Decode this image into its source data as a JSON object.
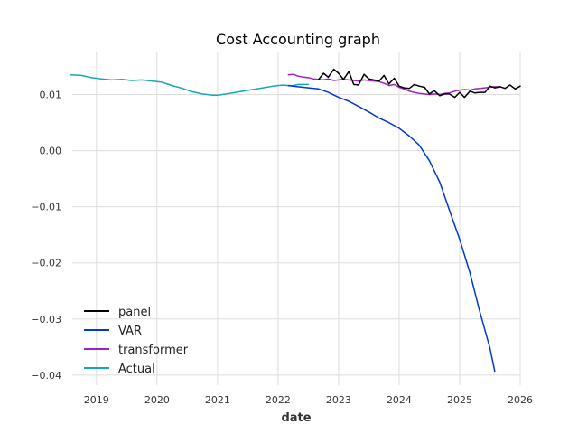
{
  "chart_data": {
    "type": "line",
    "title": "Cost Accounting graph",
    "xlabel": "date",
    "ylabel": "",
    "xlim": [
      2018.6,
      2026.0
    ],
    "ylim": [
      -0.0418,
      0.0175
    ],
    "x_ticks": [
      2019,
      2020,
      2021,
      2022,
      2023,
      2024,
      2025,
      2026
    ],
    "x_tick_labels": [
      "2019",
      "2020",
      "2021",
      "2022",
      "2023",
      "2024",
      "2025",
      "2026"
    ],
    "y_ticks": [
      0.01,
      0.0,
      -0.01,
      -0.02,
      -0.03,
      -0.04
    ],
    "y_tick_labels": [
      "0.01",
      "0.00",
      "−0.01",
      "−0.02",
      "−0.03",
      "−0.04"
    ],
    "grid": true,
    "legend_position": "bottom-left",
    "series": [
      {
        "name": "panel",
        "color": "#000000",
        "x": [
          2022.67,
          2022.75,
          2022.83,
          2022.92,
          2023.0,
          2023.08,
          2023.17,
          2023.25,
          2023.33,
          2023.42,
          2023.5,
          2023.58,
          2023.67,
          2023.75,
          2023.83,
          2023.92,
          2024.0,
          2024.08,
          2024.17,
          2024.25,
          2024.33,
          2024.42,
          2024.5,
          2024.58,
          2024.67,
          2024.75,
          2024.83,
          2024.92,
          2025.0,
          2025.08,
          2025.17,
          2025.25,
          2025.33,
          2025.42,
          2025.5,
          2025.58,
          2025.67,
          2025.75,
          2025.83,
          2025.92,
          2026.0
        ],
        "values": [
          0.0127,
          0.0138,
          0.0131,
          0.0145,
          0.0138,
          0.0127,
          0.0141,
          0.0118,
          0.0117,
          0.0136,
          0.0128,
          0.0126,
          0.0124,
          0.0134,
          0.0119,
          0.0129,
          0.0115,
          0.0112,
          0.0111,
          0.0118,
          0.0115,
          0.0113,
          0.0101,
          0.0107,
          0.0098,
          0.0101,
          0.0101,
          0.0095,
          0.0104,
          0.0095,
          0.0106,
          0.0103,
          0.0104,
          0.0104,
          0.0115,
          0.0112,
          0.0114,
          0.0111,
          0.0117,
          0.011,
          0.0115
        ]
      },
      {
        "name": "VAR",
        "color": "#0038d6",
        "x": [
          2022.17,
          2022.33,
          2022.5,
          2022.67,
          2022.83,
          2023.0,
          2023.17,
          2023.33,
          2023.5,
          2023.67,
          2023.83,
          2024.0,
          2024.17,
          2024.33,
          2024.5,
          2024.67,
          2024.83,
          2025.0,
          2025.17,
          2025.33,
          2025.5,
          2025.58
        ],
        "values": [
          0.0116,
          0.0114,
          0.0112,
          0.011,
          0.0104,
          0.0095,
          0.0088,
          0.0079,
          0.0069,
          0.0058,
          0.005,
          0.004,
          0.0026,
          0.001,
          -0.0018,
          -0.0056,
          -0.0106,
          -0.0158,
          -0.0218,
          -0.0286,
          -0.0352,
          -0.0393
        ]
      },
      {
        "name": "transformer",
        "color": "#9e21c4",
        "x": [
          2022.17,
          2022.25,
          2022.33,
          2022.42,
          2022.5,
          2022.58,
          2022.67,
          2022.75,
          2022.83,
          2022.92,
          2023.0,
          2023.08,
          2023.17,
          2023.25,
          2023.33,
          2023.42,
          2023.5,
          2023.58,
          2023.67,
          2023.75,
          2023.83,
          2023.92,
          2024.0,
          2024.08,
          2024.17,
          2024.25,
          2024.33,
          2024.42,
          2024.5,
          2024.58,
          2024.67,
          2024.75,
          2024.83,
          2024.92,
          2025.0,
          2025.08,
          2025.17,
          2025.25,
          2025.33,
          2025.42,
          2025.5,
          2025.58,
          2025.67
        ],
        "values": [
          0.0135,
          0.0136,
          0.0133,
          0.0131,
          0.013,
          0.0128,
          0.0127,
          0.0126,
          0.0128,
          0.0125,
          0.0126,
          0.0127,
          0.0126,
          0.0125,
          0.0124,
          0.0126,
          0.0125,
          0.0124,
          0.0123,
          0.012,
          0.0116,
          0.0118,
          0.0113,
          0.011,
          0.0106,
          0.0104,
          0.0102,
          0.0101,
          0.01,
          0.0101,
          0.01,
          0.0102,
          0.0103,
          0.0106,
          0.0108,
          0.0109,
          0.0108,
          0.011,
          0.0111,
          0.0112,
          0.0113,
          0.0114,
          0.0114
        ]
      },
      {
        "name": "Actual",
        "color": "#17a7b4",
        "x": [
          2018.58,
          2018.75,
          2018.92,
          2019.08,
          2019.25,
          2019.42,
          2019.58,
          2019.75,
          2019.92,
          2020.08,
          2020.25,
          2020.42,
          2020.58,
          2020.75,
          2020.92,
          2021.0,
          2021.08,
          2021.25,
          2021.42,
          2021.58,
          2021.75,
          2021.92,
          2022.08,
          2022.17,
          2022.25,
          2022.33,
          2022.42,
          2022.5
        ],
        "values": [
          0.0135,
          0.0134,
          0.013,
          0.0128,
          0.0126,
          0.0127,
          0.0125,
          0.0126,
          0.0124,
          0.0122,
          0.0116,
          0.0111,
          0.0105,
          0.0101,
          0.0099,
          0.0099,
          0.01,
          0.0103,
          0.0106,
          0.0109,
          0.0112,
          0.0115,
          0.0117,
          0.0116,
          0.0116,
          0.0118,
          0.0118,
          0.0118
        ]
      }
    ]
  }
}
